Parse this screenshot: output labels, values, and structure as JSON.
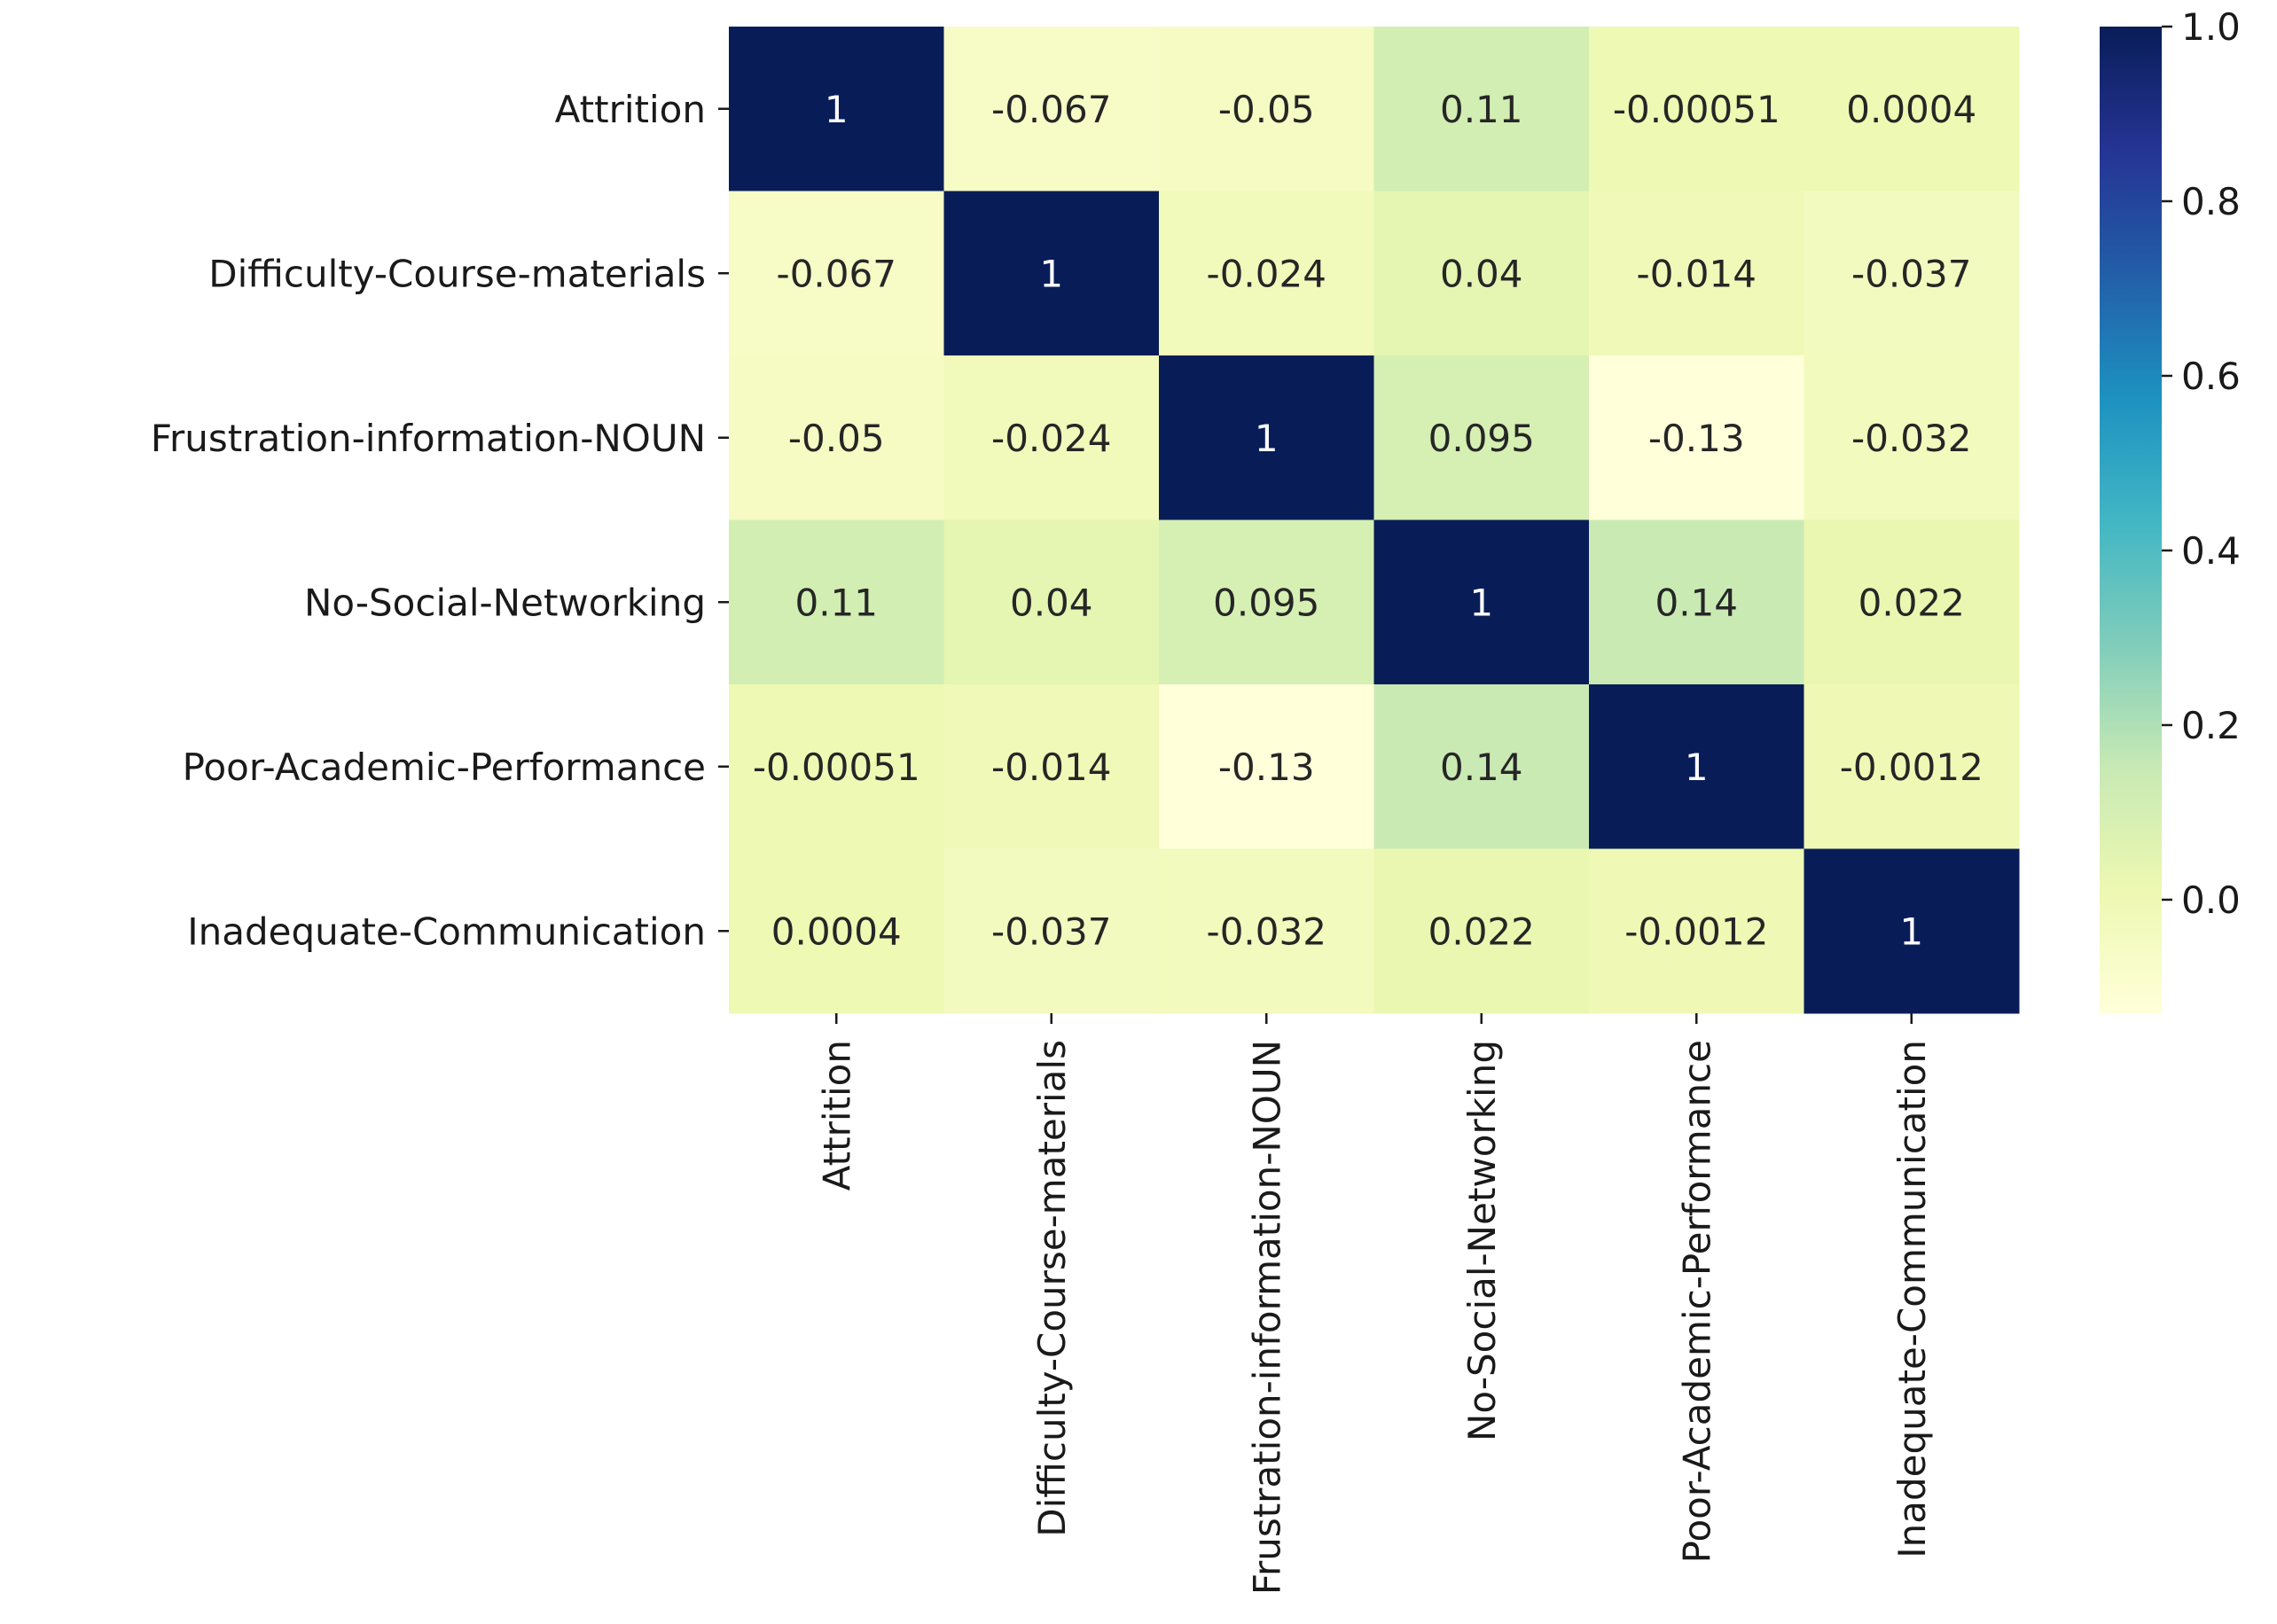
{
  "chart_data": {
    "type": "heatmap",
    "title": "",
    "xlabel": "",
    "ylabel": "",
    "row_labels": [
      "Attrition",
      "Difficulty-Course-materials",
      "Frustration-information-NOUN",
      "No-Social-Networking ",
      "Poor-Academic-Performance",
      "Inadequate-Communication"
    ],
    "col_labels": [
      "Attrition",
      "Difficulty-Course-materials",
      "Frustration-information-NOUN",
      "No-Social-Networking",
      "Poor-Academic-Performance",
      "Inadequate-Communication"
    ],
    "values": [
      [
        1,
        -0.067,
        -0.05,
        0.11,
        -0.00051,
        0.0004
      ],
      [
        -0.067,
        1,
        -0.024,
        0.04,
        -0.014,
        -0.037
      ],
      [
        -0.05,
        -0.024,
        1,
        0.095,
        -0.13,
        -0.032
      ],
      [
        0.11,
        0.04,
        0.095,
        1,
        0.14,
        0.022
      ],
      [
        -0.00051,
        -0.014,
        -0.13,
        0.14,
        1,
        -0.0012
      ],
      [
        0.0004,
        -0.037,
        -0.032,
        0.022,
        -0.0012,
        1
      ]
    ],
    "annotations": [
      [
        "1",
        "-0.067",
        "-0.05",
        "0.11",
        "-0.00051",
        "0.0004"
      ],
      [
        "-0.067",
        "1",
        "-0.024",
        "0.04",
        "-0.014",
        "-0.037"
      ],
      [
        "-0.05",
        "-0.024",
        "1",
        "0.095",
        "-0.13",
        "-0.032"
      ],
      [
        "0.11",
        "0.04",
        "0.095",
        "1",
        "0.14",
        "0.022"
      ],
      [
        "-0.00051",
        "-0.014",
        "-0.13",
        "0.14",
        "1",
        "-0.0012"
      ],
      [
        "0.0004",
        "-0.037",
        "-0.032",
        "0.022",
        "-0.0012",
        "1"
      ]
    ],
    "colormap": "YlGnBu",
    "colormap_stops": [
      "#ffffd9",
      "#edf8b1",
      "#c7e9b4",
      "#7fcdbb",
      "#41b6c4",
      "#1d91c0",
      "#225ea8",
      "#253494",
      "#081d58"
    ],
    "vmin": -0.13,
    "vmax": 1.0,
    "colorbar": {
      "ticks": [
        0.0,
        0.2,
        0.4,
        0.6,
        0.8,
        1.0
      ],
      "tick_labels": [
        "0.0",
        "0.2",
        "0.4",
        "0.6",
        "0.8",
        "1.0"
      ]
    }
  }
}
